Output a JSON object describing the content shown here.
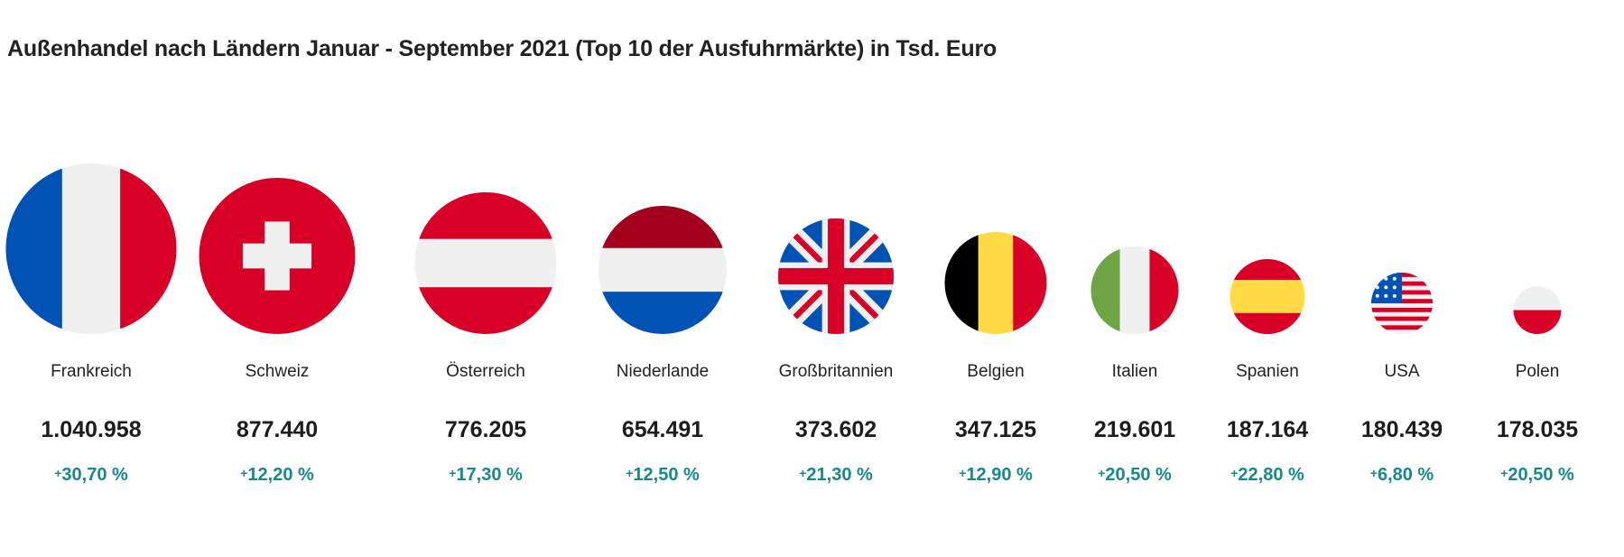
{
  "title": "Außenhandel nach Ländern Januar - September 2021 (Top 10 der Ausfuhrmärkte) in Tsd. Euro",
  "colors": {
    "positive": "#168a87",
    "red": "#d80027",
    "blue": "#0052b4",
    "white": "#f0f0f0",
    "yellow": "#ffda44",
    "green": "#6da544",
    "black": "#000000",
    "darkred": "#a2001d"
  },
  "countries": [
    {
      "name": "Frankreich",
      "value": "1.040.958",
      "change_sign": "+",
      "change": "30,70 %",
      "flag": "france-flag-icon"
    },
    {
      "name": "Schweiz",
      "value": "877.440",
      "change_sign": "+",
      "change": "12,20 %",
      "flag": "switzerland-flag-icon"
    },
    {
      "name": "Österreich",
      "value": "776.205",
      "change_sign": "+",
      "change": "17,30 %",
      "flag": "austria-flag-icon"
    },
    {
      "name": "Niederlande",
      "value": "654.491",
      "change_sign": "+",
      "change": "12,50 %",
      "flag": "netherlands-flag-icon"
    },
    {
      "name": "Großbritannien",
      "value": "373.602",
      "change_sign": "+",
      "change": "21,30 %",
      "flag": "uk-flag-icon"
    },
    {
      "name": "Belgien",
      "value": "347.125",
      "change_sign": "+",
      "change": "12,90 %",
      "flag": "belgium-flag-icon"
    },
    {
      "name": "Italien",
      "value": "219.601",
      "change_sign": "+",
      "change": "20,50 %",
      "flag": "italy-flag-icon"
    },
    {
      "name": "Spanien",
      "value": "187.164",
      "change_sign": "+",
      "change": "22,80 %",
      "flag": "spain-flag-icon"
    },
    {
      "name": "USA",
      "value": "180.439",
      "change_sign": "+",
      "change": "6,80 %",
      "flag": "usa-flag-icon"
    },
    {
      "name": "Polen",
      "value": "178.035",
      "change_sign": "+",
      "change": "20,50 %",
      "flag": "poland-flag-icon"
    }
  ]
}
